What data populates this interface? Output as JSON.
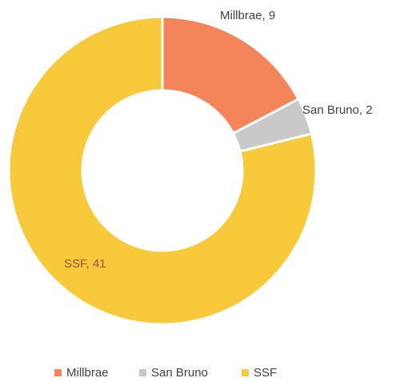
{
  "chart_data": {
    "type": "donut",
    "categories": [
      "Millbrae",
      "San Bruno",
      "SSF"
    ],
    "values": [
      9,
      2,
      41
    ],
    "value_labels": [
      "Millbrae, 9",
      "San Bruno, 2",
      "SSF, 41"
    ],
    "colors": [
      "#f4845a",
      "#c9c9c9",
      "#f9c93c"
    ],
    "legend": "bottom"
  }
}
